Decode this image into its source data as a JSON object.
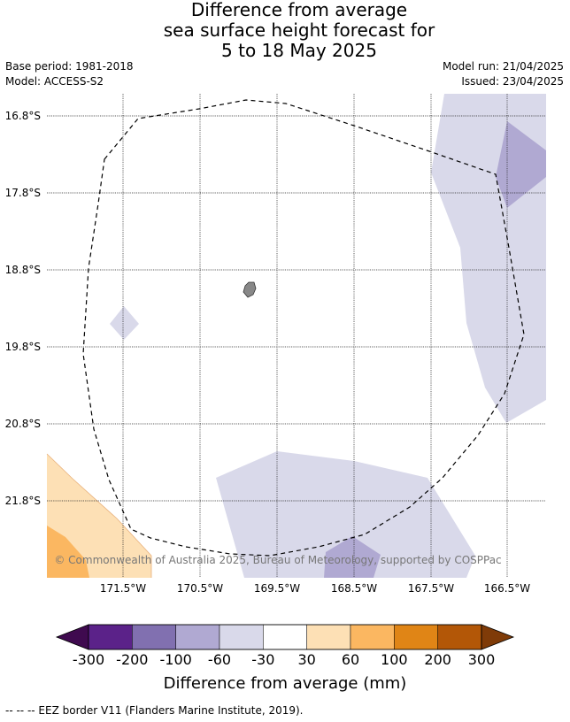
{
  "title": {
    "line1": "Difference from average",
    "line2": "sea surface height forecast for",
    "line3": "5 to 18 May 2025"
  },
  "meta": {
    "base_period": "Base period: 1981-2018",
    "model": "Model: ACCESS-S2",
    "model_run": "Model run: 21/04/2025",
    "issued": "Issued: 23/04/2025"
  },
  "map": {
    "lat_labels": [
      "16.8°S",
      "17.8°S",
      "18.8°S",
      "19.8°S",
      "20.8°S",
      "21.8°S"
    ],
    "lon_labels": [
      "171.5°W",
      "170.5°W",
      "169.5°W",
      "168.5°W",
      "167.5°W",
      "166.5°W"
    ],
    "copyright": "© Commonwealth of Australia 2025, Bureau of Meteorology, supported by COSPPac"
  },
  "colorbar": {
    "title": "Difference from average (mm)",
    "ticks": [
      "-300",
      "-200",
      "-100",
      "-60",
      "-30",
      "30",
      "60",
      "100",
      "200",
      "300"
    ],
    "colors": {
      "below_min": "#3f0a4f",
      "bins": [
        "#5b2289",
        "#8170b0",
        "#b0a9d2",
        "#d9d9ea",
        "#ffffff",
        "#fde0b5",
        "#fbb761",
        "#e08516",
        "#b35707"
      ],
      "above_max": "#7f3b08"
    }
  },
  "footer": {
    "legend_text": "--  --  -- EEZ border V11 (Flanders Marine Institute, 2019)."
  }
}
